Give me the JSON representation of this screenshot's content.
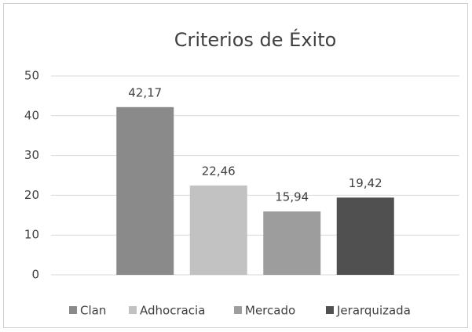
{
  "chart_data": {
    "type": "bar",
    "title": "Criterios de Éxito",
    "categories": [
      null
    ],
    "series": [
      {
        "name": "Clan",
        "color": "#8a8a8a",
        "values": [
          42.17
        ],
        "value_labels": [
          "42,17"
        ]
      },
      {
        "name": "Adhocracia",
        "color": "#c2c2c2",
        "values": [
          22.46
        ],
        "value_labels": [
          "22,46"
        ]
      },
      {
        "name": "Mercado",
        "color": "#9d9d9d",
        "values": [
          15.94
        ],
        "value_labels": [
          "15,94"
        ]
      },
      {
        "name": "Jerarquizada",
        "color": "#505050",
        "values": [
          19.42
        ],
        "value_labels": [
          "19,42"
        ]
      }
    ],
    "ylim": [
      0,
      50
    ],
    "yticks": [
      0,
      10,
      20,
      30,
      40,
      50
    ],
    "grid": true,
    "legend": "bottom"
  }
}
